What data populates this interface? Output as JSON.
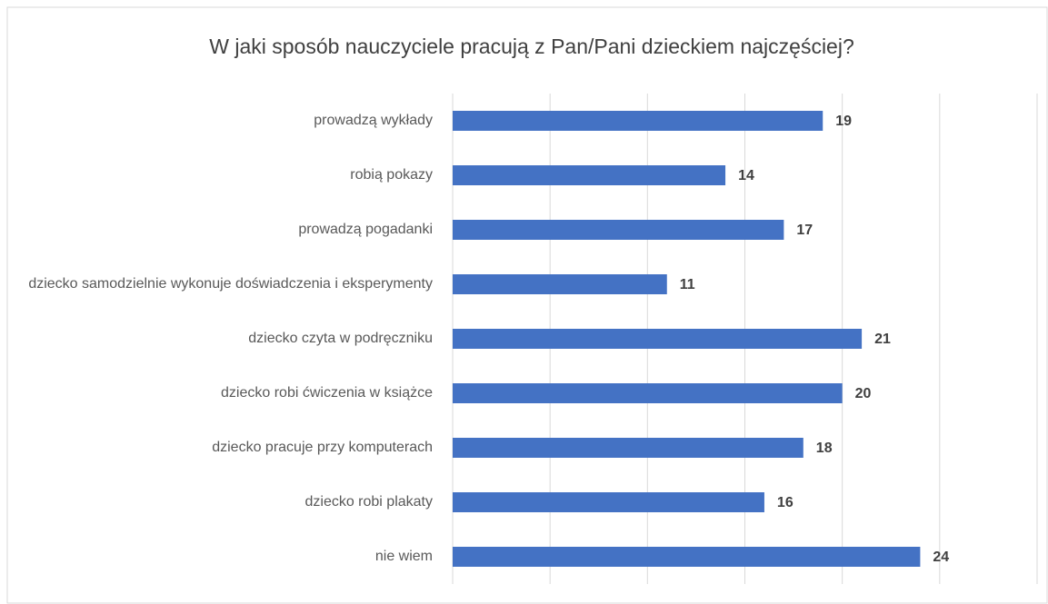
{
  "chart_data": {
    "type": "barh",
    "title": "W jaki sposób nauczyciele pracują z Pan/Pani dzieckiem najczęściej?",
    "categories": [
      "prowadzą wykłady",
      "robią pokazy",
      "prowadzą pogadanki",
      "dziecko samodzielnie wykonuje doświadczenia i eksperymenty",
      "dziecko czyta w podręczniku",
      "dziecko robi ćwiczenia w książce",
      "dziecko pracuje przy komputerach",
      "dziecko robi plakaty",
      "nie wiem"
    ],
    "values": [
      19,
      14,
      17,
      11,
      21,
      20,
      18,
      16,
      24
    ],
    "color": "#4472c4",
    "xlim": [
      0,
      30
    ],
    "xticks": [
      0,
      5,
      10,
      15,
      20,
      25,
      30
    ],
    "grid": true
  }
}
